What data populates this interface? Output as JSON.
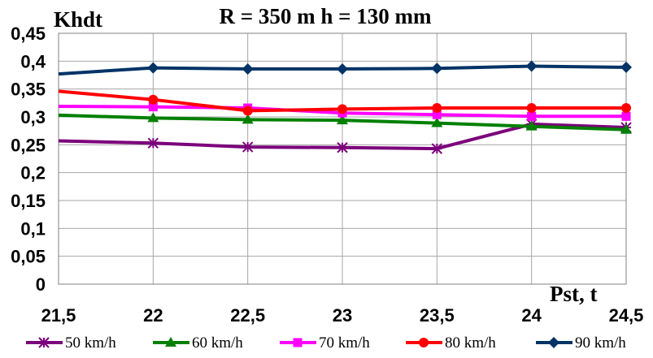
{
  "chart_data": {
    "type": "line",
    "title": "R = 350 m  h = 130 mm",
    "ylabel": "Khdt",
    "xlabel": "Pst, t",
    "x": [
      21.5,
      22,
      22.5,
      23,
      23.5,
      24,
      24.5
    ],
    "x_tick_labels": [
      "21,5",
      "22",
      "22,5",
      "23",
      "23,5",
      "24",
      "24,5"
    ],
    "ylim": [
      0,
      0.45
    ],
    "y_tick_labels": [
      "0",
      "0,05",
      "0,1",
      "0,15",
      "0,2",
      "0,25",
      "0,3",
      "0,35",
      "0,4",
      "0,45"
    ],
    "grid": true,
    "legend_position": "bottom",
    "series": [
      {
        "name": "50 km/h",
        "color": "#7B007B",
        "marker": "star",
        "values": [
          0.257,
          0.253,
          0.246,
          0.245,
          0.243,
          0.287,
          0.281
        ]
      },
      {
        "name": "60 km/h",
        "color": "#008000",
        "marker": "triangle",
        "values": [
          0.303,
          0.298,
          0.295,
          0.294,
          0.289,
          0.283,
          0.277
        ]
      },
      {
        "name": "70 km/h",
        "color": "#FF00FF",
        "marker": "square",
        "values": [
          0.319,
          0.318,
          0.316,
          0.307,
          0.304,
          0.301,
          0.301
        ]
      },
      {
        "name": "80 km/h",
        "color": "#FF0000",
        "marker": "circle",
        "values": [
          0.346,
          0.331,
          0.311,
          0.314,
          0.316,
          0.316,
          0.316
        ]
      },
      {
        "name": "90 km/h",
        "color": "#003366",
        "marker": "diamond",
        "values": [
          0.377,
          0.388,
          0.386,
          0.386,
          0.387,
          0.391,
          0.389
        ]
      }
    ]
  }
}
